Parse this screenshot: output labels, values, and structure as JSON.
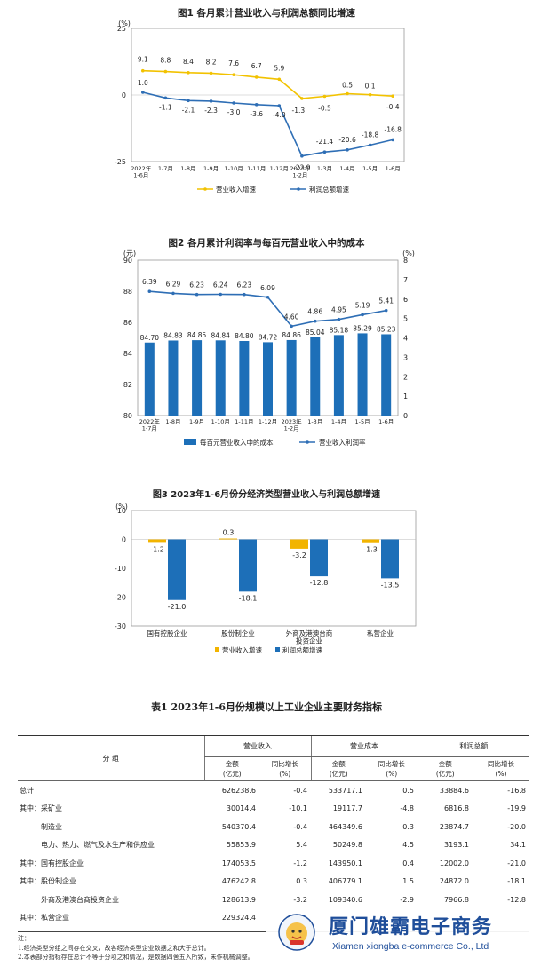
{
  "chart_data": [
    {
      "type": "line",
      "title": "图1  各月累计营业收入与利润总额同比增速",
      "yunit": "(%)",
      "ylim": [
        -25,
        25
      ],
      "yticks": [
        "25",
        "0",
        "-25"
      ],
      "categories": [
        "2022年\n1-6月",
        "1-7月",
        "1-8月",
        "1-9月",
        "1-10月",
        "1-11月",
        "1-12月",
        "2023年\n1-2月",
        "1-3月",
        "1-4月",
        "1-5月",
        "1-6月"
      ],
      "series": [
        {
          "name": "营业收入增速",
          "color": "#f2c200",
          "values": [
            9.1,
            8.8,
            8.4,
            8.2,
            7.6,
            6.7,
            5.9,
            -1.3,
            -0.5,
            0.5,
            0.1,
            -0.4
          ],
          "labels": [
            "9.1",
            "8.8",
            "8.4",
            "8.2",
            "7.6",
            "6.7",
            "5.9",
            "-1.3",
            "-0.5",
            "0.5",
            "0.1",
            "-0.4"
          ]
        },
        {
          "name": "利润总额增速",
          "color": "#2e6eb5",
          "values": [
            1.0,
            -1.1,
            -2.1,
            -2.3,
            -3.0,
            -3.6,
            -4.0,
            -22.9,
            -21.4,
            -20.6,
            -18.8,
            -16.8
          ],
          "labels": [
            "1.0",
            "-1.1",
            "-2.1",
            "-2.3",
            "-3.0",
            "-3.6",
            "-4.0",
            "-22.9",
            "-21.4",
            "-20.6",
            "-18.8",
            "-16.8"
          ]
        }
      ],
      "legend_position": "bottom"
    },
    {
      "type": "bar+line",
      "title": "图2  各月累计利润率与每百元营业收入中的成本",
      "yunit_left": "(元)",
      "yunit_right": "(%)",
      "ylim_left": [
        80,
        90
      ],
      "yticks_left": [
        "90",
        "88",
        "86",
        "84",
        "82",
        "80"
      ],
      "ylim_right": [
        0,
        8
      ],
      "yticks_right": [
        "8",
        "7",
        "6",
        "5",
        "4",
        "3",
        "2",
        "1",
        "0"
      ],
      "categories": [
        "2022年\n1-7月",
        "1-8月",
        "1-9月",
        "1-10月",
        "1-11月",
        "1-12月",
        "2023年\n1-2月",
        "1-3月",
        "1-4月",
        "1-5月",
        "1-6月"
      ],
      "series": [
        {
          "name": "每百元营业收入中的成本",
          "kind": "bar",
          "axis": "left",
          "color": "#1d6fb8",
          "values": [
            84.7,
            84.83,
            84.85,
            84.84,
            84.8,
            84.72,
            84.86,
            85.04,
            85.18,
            85.29,
            85.23
          ],
          "labels": [
            "84.70",
            "84.83",
            "84.85",
            "84.84",
            "84.80",
            "84.72",
            "84.86",
            "85.04",
            "85.18",
            "85.29",
            "85.23"
          ]
        },
        {
          "name": "营业收入利润率",
          "kind": "line",
          "axis": "right",
          "color": "#2e6eb5",
          "values": [
            6.39,
            6.29,
            6.23,
            6.24,
            6.23,
            6.09,
            4.6,
            4.86,
            4.95,
            5.19,
            5.41
          ],
          "labels": [
            "6.39",
            "6.29",
            "6.23",
            "6.24",
            "6.23",
            "6.09",
            "4.60",
            "4.86",
            "4.95",
            "5.19",
            "5.41"
          ]
        }
      ],
      "legend_position": "bottom"
    },
    {
      "type": "bar",
      "title": "图3  2023年1-6月份分经济类型营业收入与利润总额增速",
      "yunit": "(%)",
      "ylim": [
        -30,
        10
      ],
      "yticks": [
        "10",
        "0",
        "-10",
        "-20",
        "-30"
      ],
      "categories": [
        "国有控股企业",
        "股份制企业",
        "外商及港澳台商\n投资企业",
        "私营企业"
      ],
      "series": [
        {
          "name": "营业收入增速",
          "color": "#f2b400",
          "values": [
            -1.2,
            0.3,
            -3.2,
            -1.3
          ],
          "labels": [
            "-1.2",
            "0.3",
            "-3.2",
            "-1.3"
          ]
        },
        {
          "name": "利润总额增速",
          "color": "#1d6fb8",
          "values": [
            -21.0,
            -18.1,
            -12.8,
            -13.5
          ],
          "labels": [
            "-21.0",
            "-18.1",
            "-12.8",
            "-13.5"
          ]
        }
      ],
      "legend_position": "bottom"
    }
  ],
  "table": {
    "title": "表1    2023年1-6月份规模以上工业企业主要财务指标",
    "group_header": "分    组",
    "metrics": [
      "营业收入",
      "营业成本",
      "利润总额"
    ],
    "sub_amount": "金额\n(亿元)",
    "sub_growth": "同比增长\n(%)",
    "rows": [
      [
        "总计",
        "626238.6",
        "-0.4",
        "533717.1",
        "0.5",
        "33884.6",
        "-16.8"
      ],
      [
        "其中：采矿业",
        "30014.4",
        "-10.1",
        "19117.7",
        "-4.8",
        "6816.8",
        "-19.9"
      ],
      [
        "　　　制造业",
        "540370.4",
        "-0.4",
        "464349.6",
        "0.3",
        "23874.7",
        "-20.0"
      ],
      [
        "　　　电力、热力、燃气及水生产和供应业",
        "55853.9",
        "5.4",
        "50249.8",
        "4.5",
        "3193.1",
        "34.1"
      ],
      [
        "其中：国有控股企业",
        "174053.5",
        "-1.2",
        "143950.1",
        "0.4",
        "12002.0",
        "-21.0"
      ],
      [
        "其中：股份制企业",
        "476242.8",
        "0.3",
        "406779.1",
        "1.5",
        "24872.0",
        "-18.1"
      ],
      [
        "　　　外商及港澳台商投资企业",
        "128613.9",
        "-3.2",
        "109340.6",
        "-2.9",
        "7966.8",
        "-12.8"
      ],
      [
        "其中：私营企业",
        "229324.4",
        "",
        "",
        "",
        "",
        ""
      ]
    ],
    "notes": [
      "注：",
      "1.经济类型分组之间存在交叉，故各经济类型企业数据之和大于总计。",
      "2.本表部分指标存在总计不等于分项之和情况，是数据四舍五入所致，未作机械调整。"
    ]
  },
  "watermark": {
    "brand_cn": "厦门雄霸电子商务",
    "brand_en": "Xiamen xiongba e-commerce Co., Ltd",
    "logo_icon": "lion-mascot-icon"
  }
}
